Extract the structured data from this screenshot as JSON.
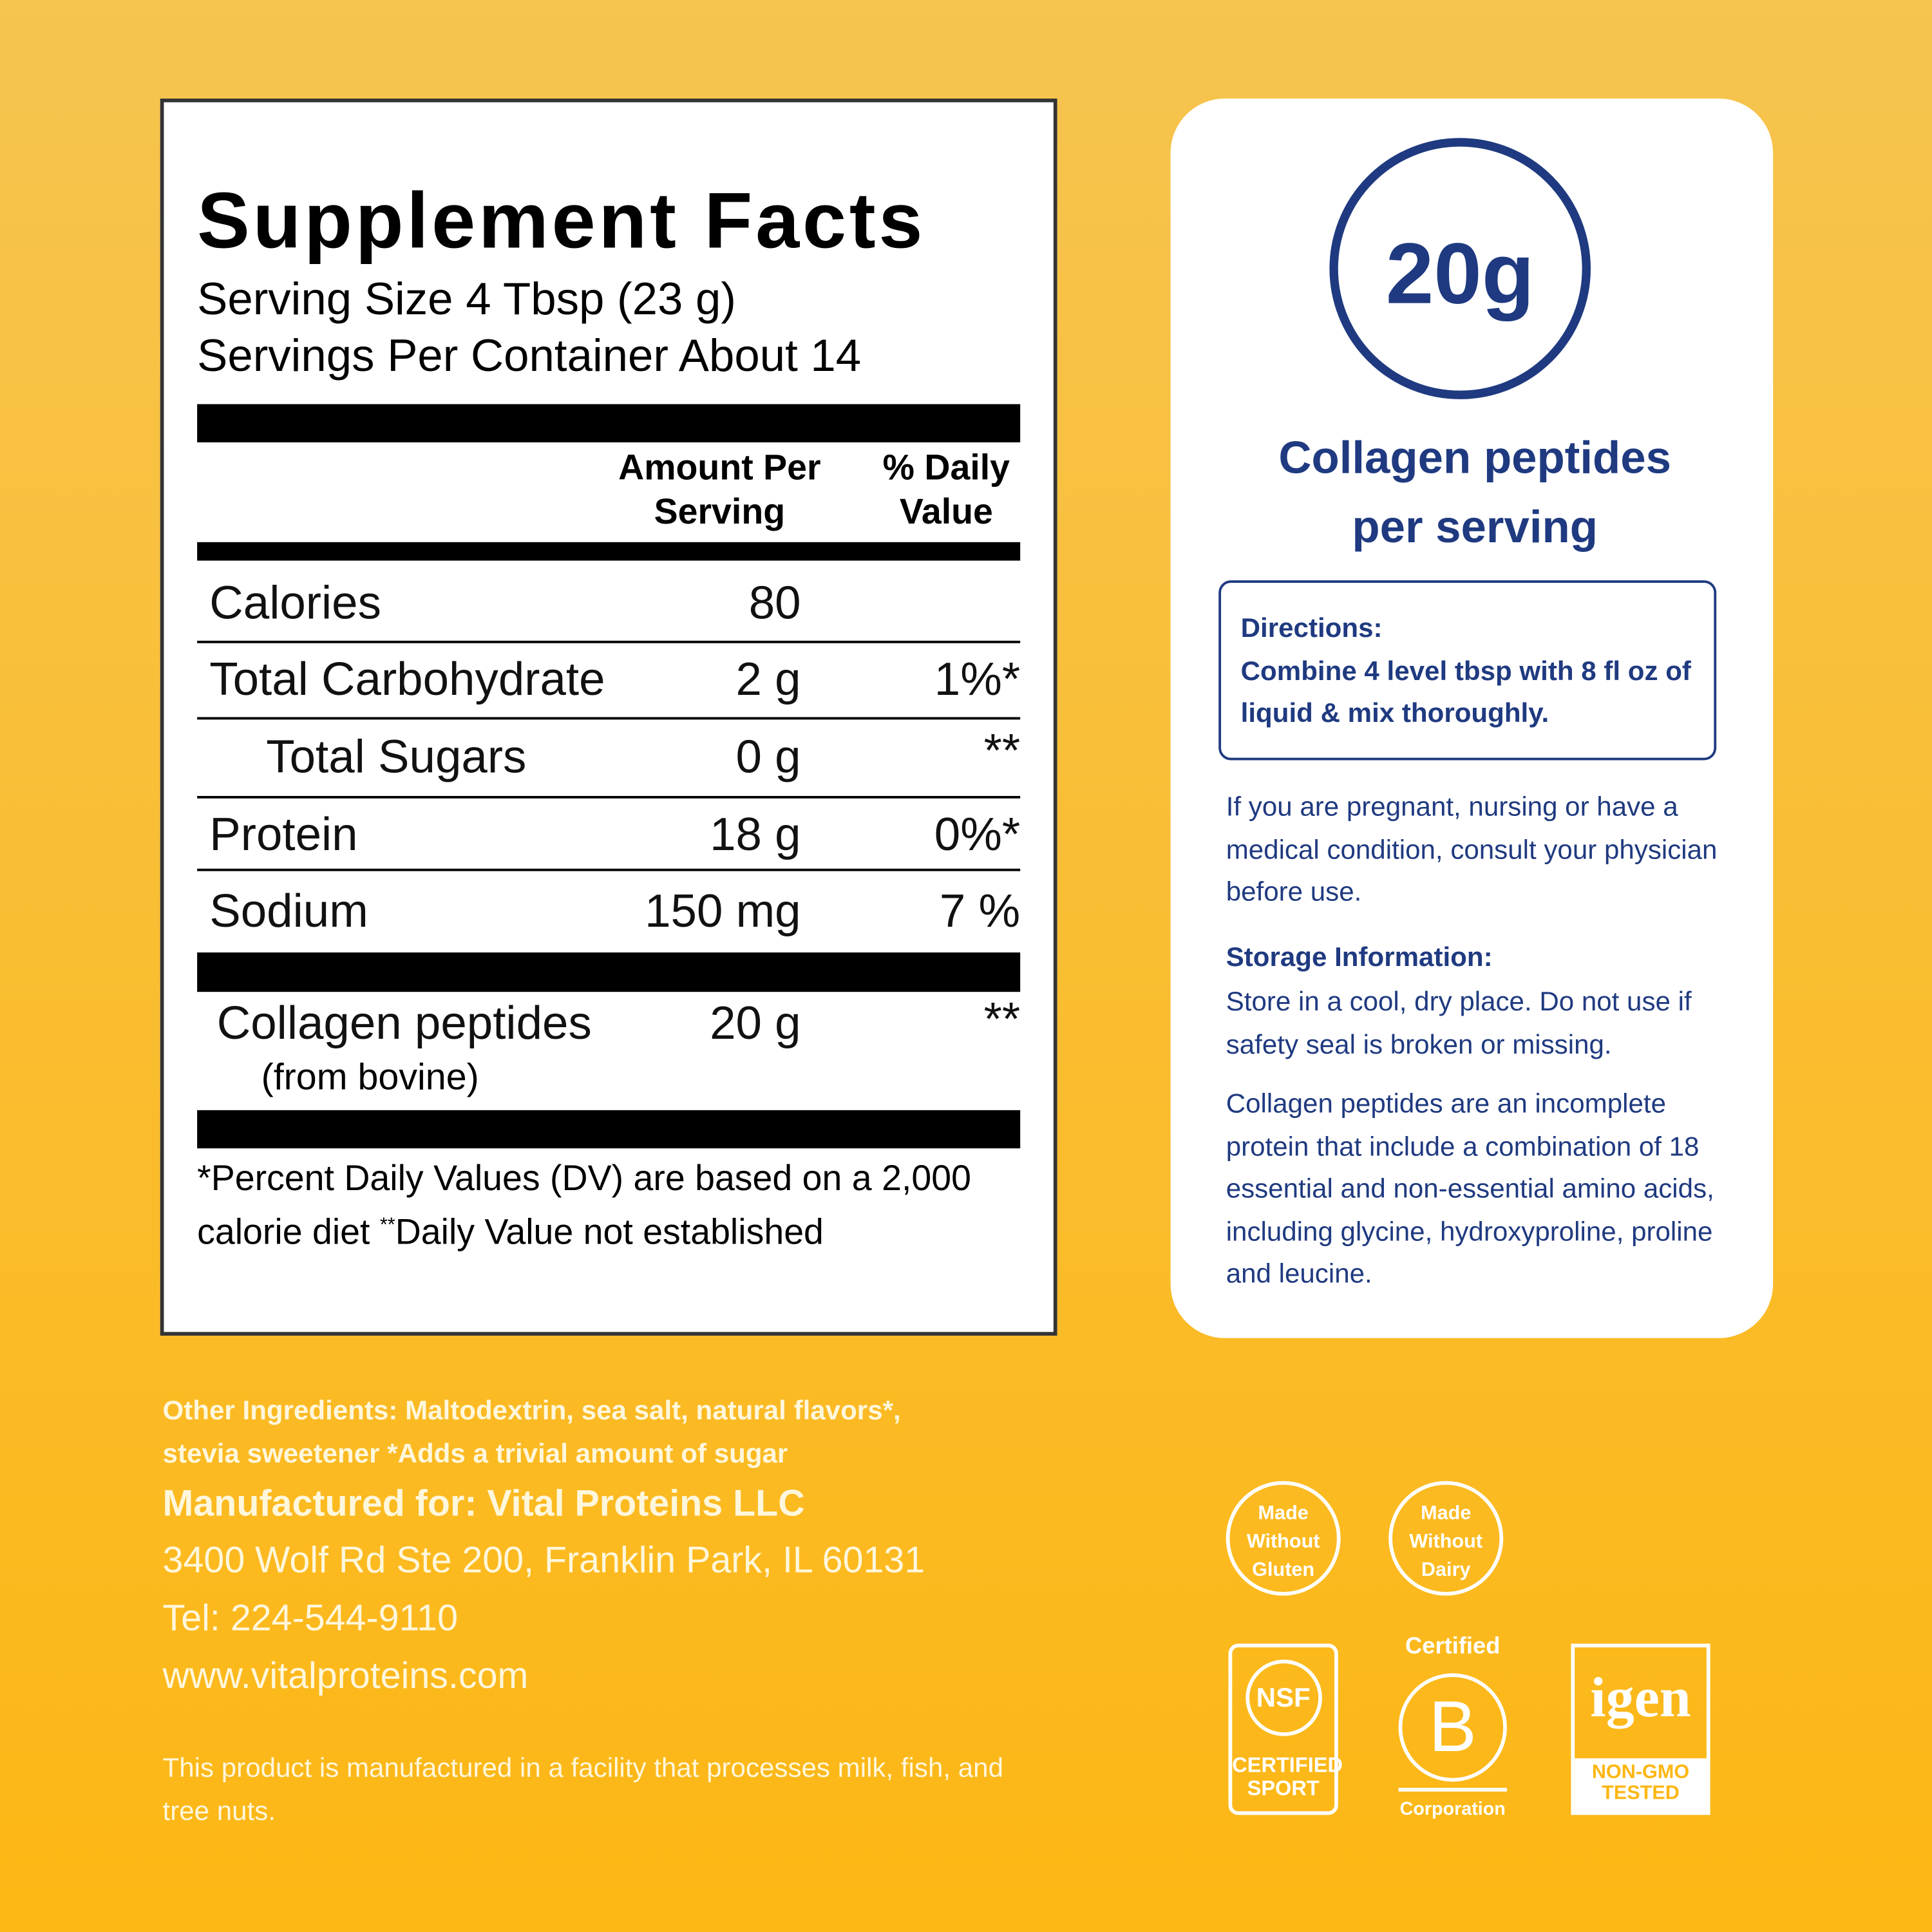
{
  "supplement_facts": {
    "title": "Supplement Facts",
    "serving_size": "Serving Size 4 Tbsp (23 g)",
    "servings_per_container": "Servings Per Container About 14",
    "column_headers": {
      "amount": "Amount Per Serving",
      "daily_value": "% Daily Value"
    },
    "rows": [
      {
        "name": "Calories",
        "amount": "80"
      },
      {
        "name": "Total Carbohydrate",
        "amount": "2 g",
        "daily_value": "1%*"
      },
      {
        "name": "Total Sugars",
        "amount": "0 g",
        "daily_value": "**"
      },
      {
        "name": "Protein",
        "amount": "18 g",
        "daily_value": "0%*"
      },
      {
        "name": "Sodium",
        "amount": "150 mg",
        "daily_value": "7 %"
      }
    ],
    "collagen": {
      "name": "Collagen peptides",
      "source": "(from bovine)",
      "amount": "20 g",
      "daily_value": "**"
    },
    "footnote": {
      "text": "*Percent Daily Values (DV) are based on a 2,000 calorie diet",
      "mark": "**",
      "text2": "Daily Value not established"
    }
  },
  "info_panel": {
    "highlight": "20g",
    "highlight_caption": "Collagen peptides per serving",
    "directions_label": "Directions:",
    "directions": "Combine 4 level tbsp with 8 fl oz of liquid & mix thoroughly.",
    "warning": "If you are pregnant, nursing or have a medical condition, consult your physician before use.",
    "storage_label": "Storage Information:",
    "storage": "Store in a cool, dry place. Do not use if safety seal is broken or missing.",
    "note": "Collagen peptides are an incomplete protein that include a combination of 18 essential and non-essential amino acids, including glycine, hydroxyproline, proline and leucine."
  },
  "footer": {
    "other_ingredients": "Other Ingredients: Maltodextrin, sea salt, natural flavors*, stevia sweetener  *Adds a trivial amount of sugar",
    "manufacturer": "Manufactured for: Vital Proteins LLC",
    "address": "3400 Wolf Rd Ste 200, Franklin Park, IL 60131",
    "phone": "Tel: 224-544-9110",
    "website": "www.vitalproteins.com",
    "allergen": "This product is manufactured in a facility that processes milk, fish, and tree nuts."
  },
  "badges": {
    "gluten": "Made Without Gluten",
    "dairy": "Made Without Dairy",
    "nsf": "NSF",
    "nsf_caption": "CERTIFIED SPORT",
    "bcorp_top": "Certified",
    "bcorp_mark": "B",
    "bcorp_bottom": "Corporation",
    "nongmo_mark": "igen",
    "nongmo_caption": "NON-GMO TESTED"
  }
}
